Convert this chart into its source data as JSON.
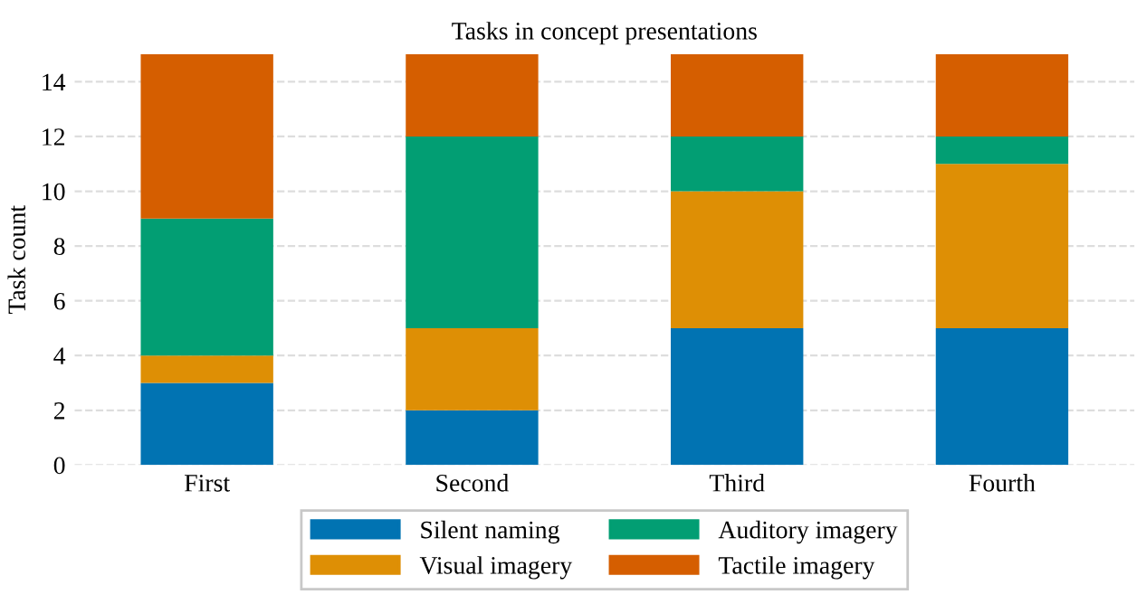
{
  "chart_data": {
    "type": "bar",
    "title": "Tasks in concept presentations",
    "ylabel": "Task count",
    "stacked": true,
    "categories": [
      "First",
      "Second",
      "Third",
      "Fourth"
    ],
    "series": [
      {
        "name": "Silent naming",
        "color": "#0173b2",
        "values": [
          3,
          2,
          5,
          5
        ]
      },
      {
        "name": "Visual imagery",
        "color": "#de8f05",
        "values": [
          1,
          3,
          5,
          6
        ]
      },
      {
        "name": "Auditory imagery",
        "color": "#029e73",
        "values": [
          5,
          7,
          2,
          1
        ]
      },
      {
        "name": "Tactile imagery",
        "color": "#d55e00",
        "values": [
          6,
          3,
          3,
          3
        ]
      }
    ],
    "ylim": [
      0,
      15
    ],
    "yticks": [
      0,
      2,
      4,
      6,
      8,
      10,
      12,
      14
    ],
    "grid": "y",
    "legend": "bottom"
  }
}
